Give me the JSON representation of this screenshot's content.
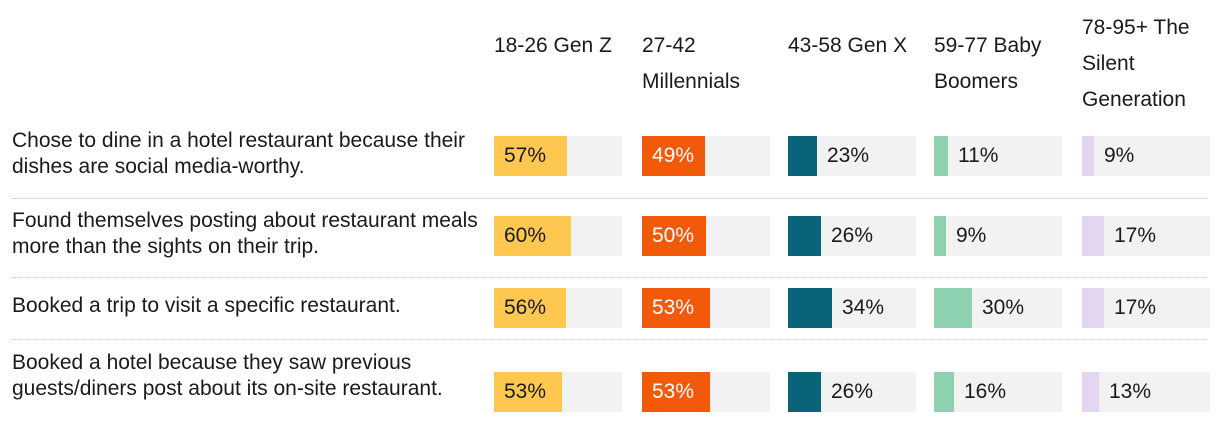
{
  "chart_data": {
    "type": "table",
    "columns": [
      {
        "label": "18-26 Gen Z",
        "color": "#FEC850"
      },
      {
        "label": "27-42 Millennials",
        "color": "#F25A0A"
      },
      {
        "label": "43-58 Gen X",
        "color": "#0A6479"
      },
      {
        "label": "59-77 Baby Boomers",
        "color": "#8DD1B1"
      },
      {
        "label": "78-95+ The Silent Generation",
        "color": "#E4D5F0"
      }
    ],
    "rows": [
      {
        "label": "Chose to dine in a hotel restaurant because their dishes are social media-worthy.",
        "values": [
          57,
          49,
          23,
          11,
          9
        ],
        "value_labels": [
          "57%",
          "49%",
          "23%",
          "11%",
          "9%"
        ]
      },
      {
        "label": "Found themselves posting about restaurant meals more than the sights on their trip.",
        "values": [
          60,
          50,
          26,
          9,
          17
        ],
        "value_labels": [
          "60%",
          "50%",
          "26%",
          "9%",
          "17%"
        ]
      },
      {
        "label": "Booked a trip to visit a specific restaurant.",
        "values": [
          56,
          53,
          34,
          30,
          17
        ],
        "value_labels": [
          "56%",
          "53%",
          "34%",
          "30%",
          "17%"
        ]
      },
      {
        "label": "Booked a hotel because they saw previous guests/diners post about its on-site restaurant.",
        "values": [
          53,
          53,
          26,
          16,
          13
        ],
        "value_labels": [
          "53%",
          "53%",
          "26%",
          "16%",
          "13%"
        ]
      }
    ],
    "scale_max": 100
  }
}
